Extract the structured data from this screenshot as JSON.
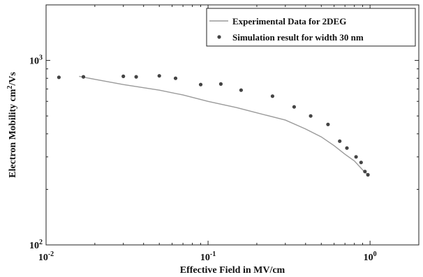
{
  "chart_data": {
    "type": "line",
    "x_scale": "log",
    "y_scale": "log",
    "xlim": [
      0.01,
      2
    ],
    "ylim": [
      100,
      2000
    ],
    "x_ticks": [
      {
        "value": 0.01,
        "base": "10",
        "exp": "-2"
      },
      {
        "value": 0.1,
        "base": "10",
        "exp": "-1"
      },
      {
        "value": 1,
        "base": "10",
        "exp": "0"
      }
    ],
    "y_ticks": [
      {
        "value": 100,
        "base": "10",
        "exp": "2"
      },
      {
        "value": 1000,
        "base": "10",
        "exp": "3"
      }
    ],
    "xlabel": "Effective Field in MV/cm",
    "ylabel": {
      "main": "Electron Mobility cm",
      "sup": "2",
      "tail": "/Vs"
    },
    "grid": false,
    "legend_position": "top-right",
    "series": [
      {
        "name": "Experimental Data for 2DEG",
        "style": "line",
        "color": "#9a9a9a",
        "x": [
          0.016,
          0.02,
          0.03,
          0.05,
          0.07,
          0.1,
          0.15,
          0.2,
          0.3,
          0.4,
          0.5,
          0.6,
          0.7,
          0.8,
          0.9,
          0.97
        ],
        "y": [
          820,
          790,
          740,
          690,
          650,
          600,
          555,
          520,
          475,
          425,
          385,
          345,
          310,
          285,
          255,
          240
        ]
      },
      {
        "name": "Simulation result for width 30 nm",
        "style": "markers",
        "color": "#444444",
        "x": [
          0.012,
          0.017,
          0.03,
          0.036,
          0.05,
          0.063,
          0.09,
          0.12,
          0.16,
          0.25,
          0.34,
          0.43,
          0.55,
          0.65,
          0.72,
          0.82,
          0.88,
          0.93,
          0.97
        ],
        "y": [
          810,
          815,
          820,
          815,
          825,
          800,
          740,
          745,
          690,
          640,
          560,
          500,
          450,
          365,
          335,
          300,
          280,
          250,
          240
        ]
      }
    ]
  }
}
